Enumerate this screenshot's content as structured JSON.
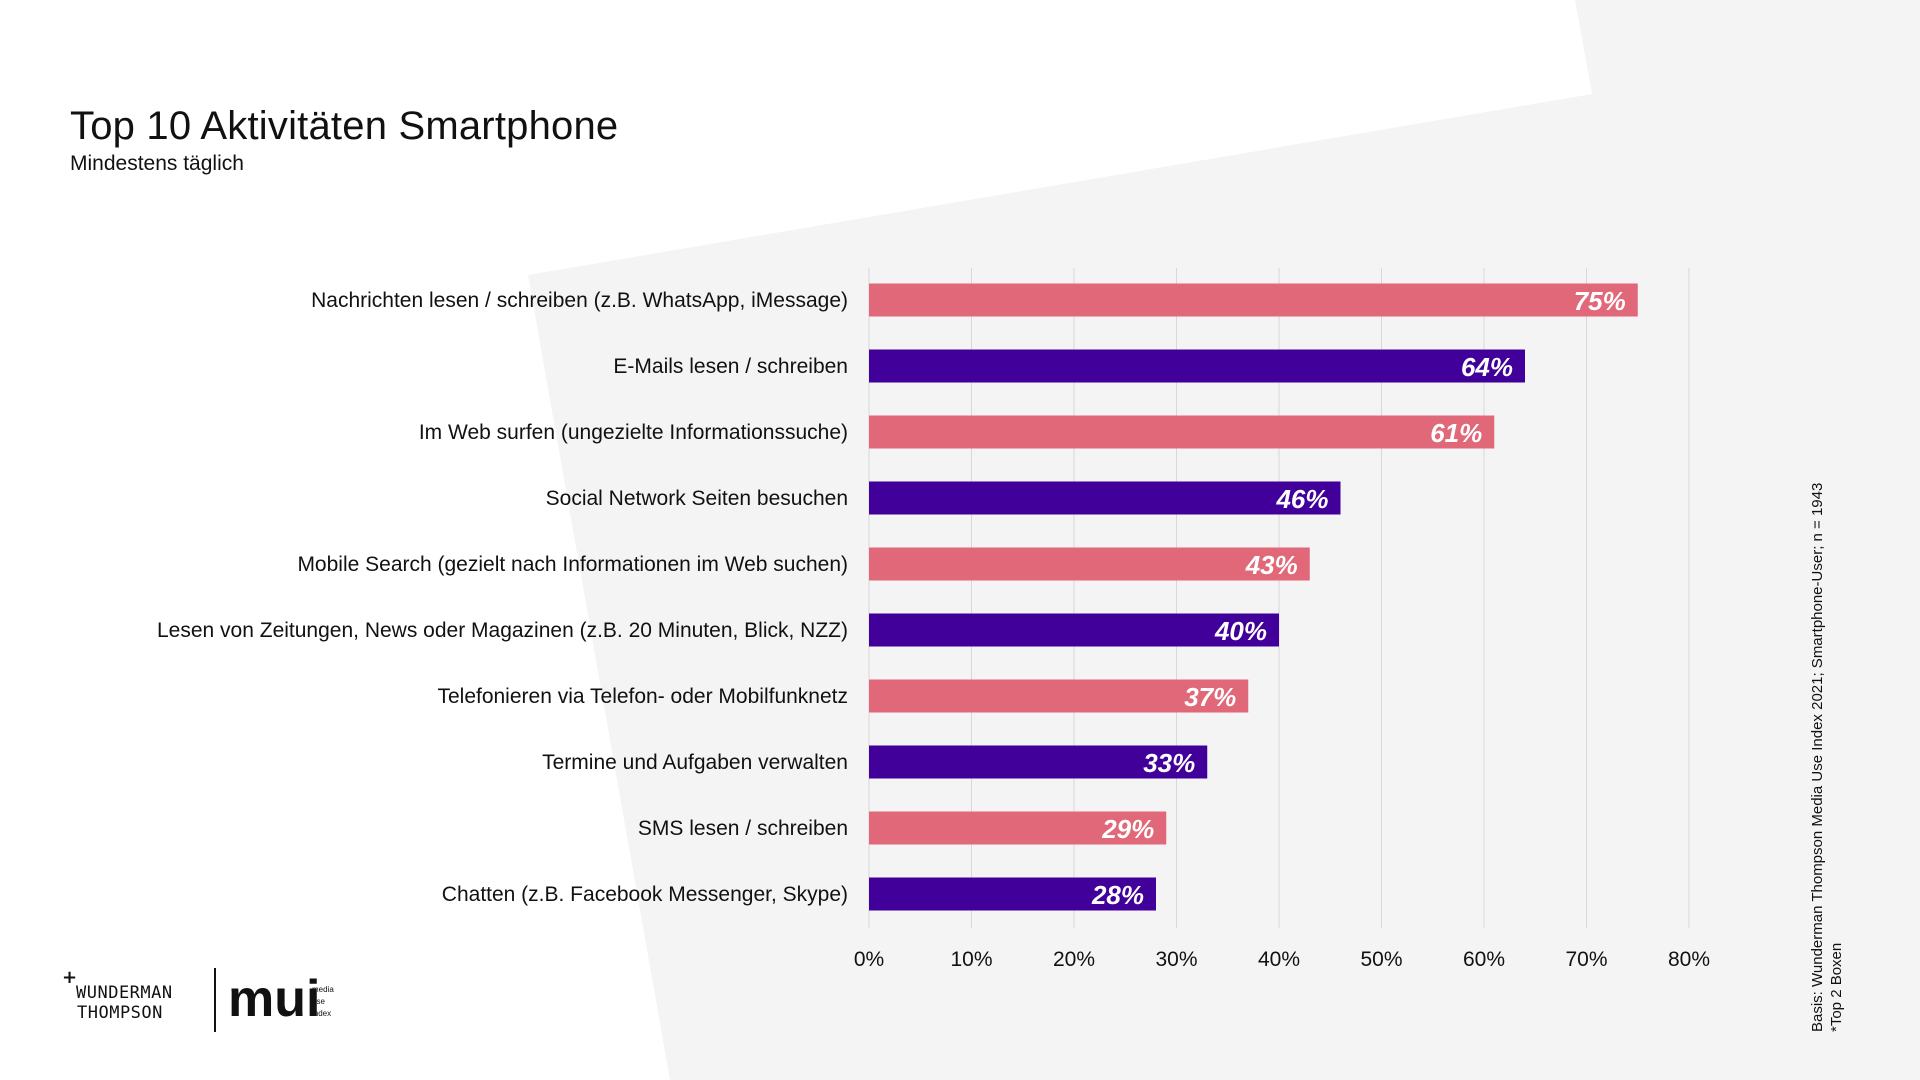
{
  "page": {
    "title": "Top 10 Aktivitäten Smartphone",
    "subtitle": "Mindestens täglich",
    "footnote_lines": [
      "Basis: Wunderman Thompson Media Use Index 2021; Smartphone-User; n = 1943",
      "*Top 2 Boxen"
    ],
    "logos": {
      "left_plus": "+",
      "left_line1": "WUNDERMAN",
      "left_line2": "THOMPSON",
      "right_mark": "mui",
      "right_words": [
        "media",
        "use",
        "index"
      ]
    }
  },
  "colors": {
    "pink": "#e06878",
    "purple": "#410099",
    "background_panel": "#f4f4f4",
    "grid": "#d8d8d8",
    "text": "#111111",
    "value_label": "#ffffff"
  },
  "chart_data": {
    "type": "bar",
    "orientation": "horizontal",
    "categories": [
      "Nachrichten lesen / schreiben (z.B. WhatsApp, iMessage)",
      "E-Mails lesen / schreiben",
      "Im Web surfen (ungezielte Informationssuche)",
      "Social Network Seiten besuchen",
      "Mobile Search (gezielt nach Informationen im Web suchen)",
      "Lesen von Zeitungen, News oder Magazinen (z.B. 20 Minuten, Blick, NZZ)",
      "Telefonieren via Telefon- oder Mobilfunknetz",
      "Termine und Aufgaben verwalten",
      "SMS lesen / schreiben",
      "Chatten (z.B. Facebook Messenger, Skype)"
    ],
    "values": [
      75,
      64,
      61,
      46,
      43,
      40,
      37,
      33,
      29,
      28
    ],
    "data_labels": [
      "75%",
      "64%",
      "61%",
      "46%",
      "43%",
      "40%",
      "37%",
      "33%",
      "29%",
      "28%"
    ],
    "bar_colors": [
      "#e06878",
      "#410099",
      "#e06878",
      "#410099",
      "#e06878",
      "#410099",
      "#e06878",
      "#410099",
      "#e06878",
      "#410099"
    ],
    "xlim": [
      0,
      80
    ],
    "x_ticks": [
      0,
      10,
      20,
      30,
      40,
      50,
      60,
      70,
      80
    ],
    "x_tick_labels": [
      "0%",
      "10%",
      "20%",
      "30%",
      "40%",
      "50%",
      "60%",
      "70%",
      "80%"
    ],
    "grid": true,
    "legend": false,
    "title": "Top 10 Aktivitäten Smartphone",
    "subtitle": "Mindestens täglich",
    "xlabel": "",
    "ylabel": ""
  }
}
